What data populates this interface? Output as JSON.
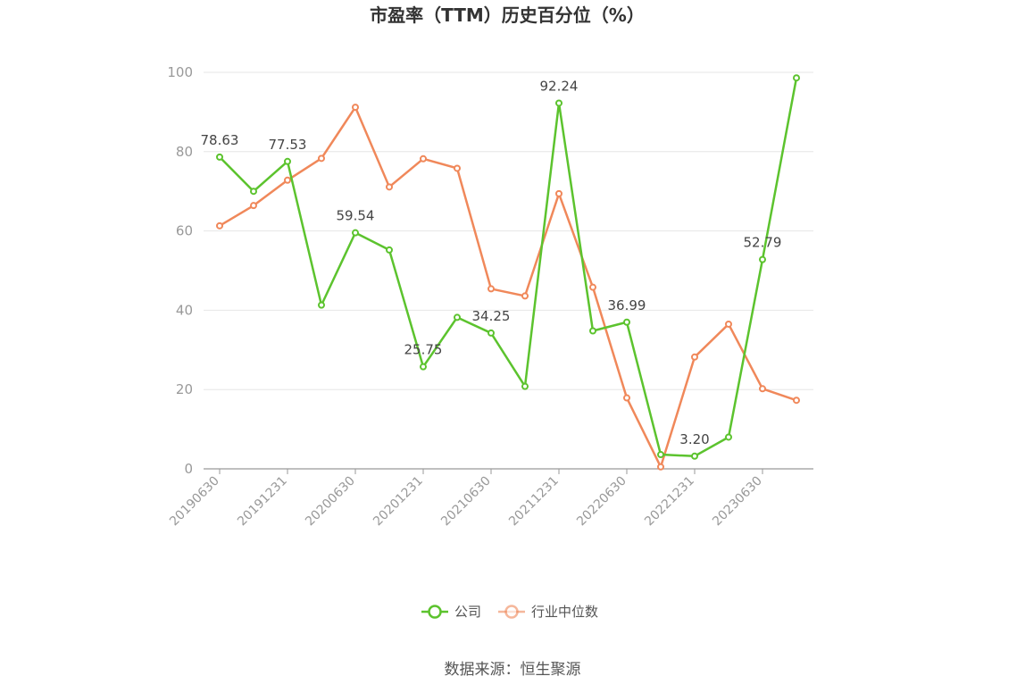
{
  "chart_data": {
    "type": "line",
    "title": "市盈率（TTM）历史百分位（%）",
    "source": "数据来源：恒生聚源",
    "ylim": [
      0,
      100
    ],
    "yticks": [
      0,
      20,
      40,
      60,
      80,
      100
    ],
    "x": [
      "20190630",
      "20190930",
      "20191231",
      "20200331",
      "20200630",
      "20200930",
      "20201231",
      "20210331",
      "20210630",
      "20210930",
      "20211231",
      "20220331",
      "20220630",
      "20220930",
      "20221231",
      "20230331",
      "20230630",
      "20230930"
    ],
    "xtick_labels": [
      "20190630",
      "20191231",
      "20200630",
      "20201231",
      "20210630",
      "20211231",
      "20220630",
      "20221231",
      "20230630"
    ],
    "grid": true,
    "legend_position": "bottom",
    "series": [
      {
        "name": "公司",
        "color": "#5cc32e",
        "values": [
          78.63,
          70.0,
          77.53,
          41.3,
          59.54,
          55.2,
          25.75,
          38.2,
          34.25,
          20.8,
          92.24,
          34.8,
          36.99,
          3.6,
          3.2,
          8.0,
          52.79,
          98.6
        ],
        "labels": [
          "78.63",
          "",
          "77.53",
          "",
          "59.54",
          "",
          "25.75",
          "",
          "34.25",
          "",
          "92.24",
          "",
          "36.99",
          "",
          "3.20",
          "",
          "52.79",
          ""
        ]
      },
      {
        "name": "行业中位数",
        "color": "#f0885a",
        "values": [
          61.3,
          66.4,
          72.8,
          78.3,
          91.2,
          71.1,
          78.2,
          75.8,
          45.4,
          43.6,
          69.4,
          45.8,
          17.9,
          0.5,
          28.2,
          36.5,
          20.2,
          17.3
        ],
        "labels": []
      }
    ]
  }
}
